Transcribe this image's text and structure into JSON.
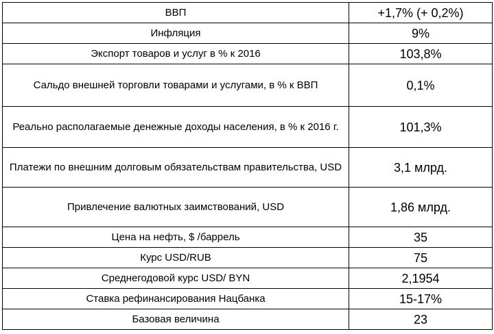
{
  "table": {
    "rows": [
      {
        "indicator": "ВВП",
        "value": "+1,7% (+ 0,2%)"
      },
      {
        "indicator": "Инфляция",
        "value": "9%"
      },
      {
        "indicator": "Экспорт товаров и услуг в % к 2016",
        "value": "103,8%"
      },
      {
        "indicator": "Сальдо внешней торговли товарами и услугами, в % к ВВП",
        "value": "0,1%"
      },
      {
        "indicator": "Реально располагаемые денежные доходы населения, в % к 2016 г.",
        "value": "101,3%"
      },
      {
        "indicator": "Платежи по внешним долговым обязательствам правительства, USD",
        "value": "3,1 млрд."
      },
      {
        "indicator": "Привлечение валютных заимствований, USD",
        "value": "1,86 млрд."
      },
      {
        "indicator": "Цена на нефть, $ /баррель",
        "value": "35"
      },
      {
        "indicator": "Курс USD/RUB",
        "value": "75"
      },
      {
        "indicator": "Среднегодовой курс USD/ BYN",
        "value": "2,1954"
      },
      {
        "indicator": "Ставка рефинансирования Нацбанка",
        "value": "15-17%"
      },
      {
        "indicator": "Базовая величина",
        "value": "23"
      }
    ]
  }
}
